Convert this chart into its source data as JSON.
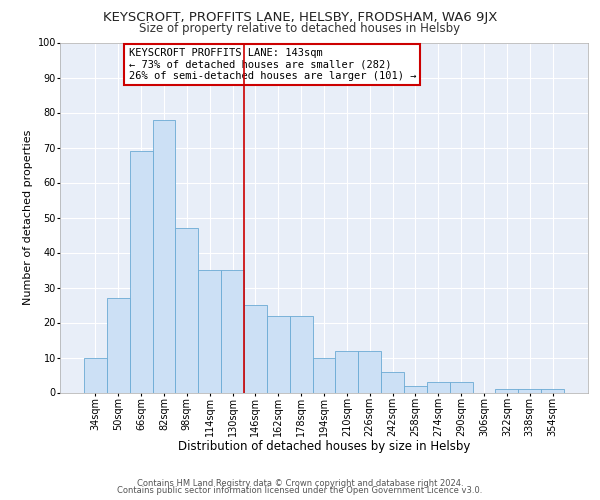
{
  "title": "KEYSCROFT, PROFFITS LANE, HELSBY, FRODSHAM, WA6 9JX",
  "subtitle": "Size of property relative to detached houses in Helsby",
  "xlabel": "Distribution of detached houses by size in Helsby",
  "ylabel": "Number of detached properties",
  "bar_values": [
    10,
    27,
    69,
    78,
    47,
    35,
    35,
    25,
    22,
    22,
    10,
    12,
    12,
    6,
    2,
    3,
    3,
    0,
    1,
    1,
    1
  ],
  "bin_labels": [
    "34sqm",
    "50sqm",
    "66sqm",
    "82sqm",
    "98sqm",
    "114sqm",
    "130sqm",
    "146sqm",
    "162sqm",
    "178sqm",
    "194sqm",
    "210sqm",
    "226sqm",
    "242sqm",
    "258sqm",
    "274sqm",
    "290sqm",
    "306sqm",
    "322sqm",
    "338sqm",
    "354sqm"
  ],
  "bar_color": "#cce0f5",
  "bar_edge_color": "#6aaad4",
  "vline_color": "#cc0000",
  "annotation_lines": [
    "KEYSCROFT PROFFITS LANE: 143sqm",
    "← 73% of detached houses are smaller (282)",
    "26% of semi-detached houses are larger (101) →"
  ],
  "ylim": [
    0,
    100
  ],
  "yticks": [
    0,
    10,
    20,
    30,
    40,
    50,
    60,
    70,
    80,
    90,
    100
  ],
  "bg_color": "#ffffff",
  "plot_bg_color": "#e8eef8",
  "grid_color": "#ffffff",
  "footer_line1": "Contains HM Land Registry data © Crown copyright and database right 2024.",
  "footer_line2": "Contains public sector information licensed under the Open Government Licence v3.0.",
  "title_fontsize": 9.5,
  "subtitle_fontsize": 8.5,
  "xlabel_fontsize": 8.5,
  "ylabel_fontsize": 8,
  "tick_fontsize": 7,
  "annotation_fontsize": 7.5,
  "footer_fontsize": 6
}
